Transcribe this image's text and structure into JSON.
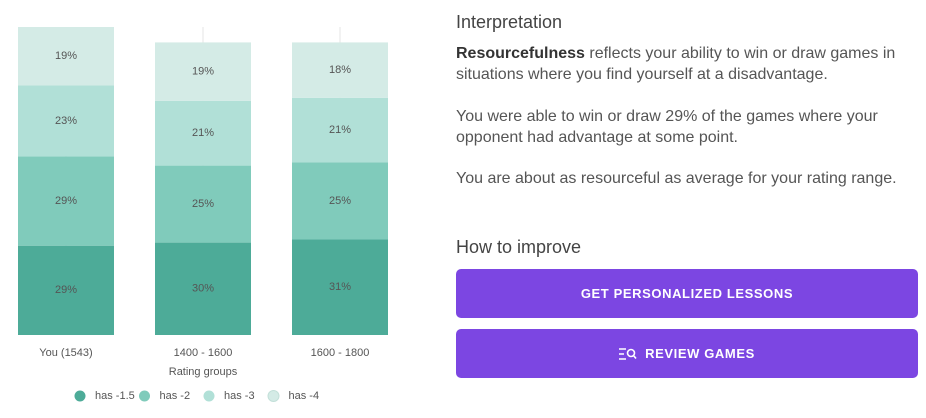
{
  "chart_data": {
    "type": "bar",
    "stacked": true,
    "categories": [
      "You (1543)",
      "1400 - 1600",
      "1600 - 1800"
    ],
    "x_label": "Rating groups",
    "ylim": [
      0,
      100
    ],
    "series": [
      {
        "name": "has -1.5",
        "color": "#4dab98",
        "values": [
          29,
          30,
          31
        ],
        "value_labels": [
          "29%",
          "30%",
          "31%"
        ]
      },
      {
        "name": "has -2",
        "color": "#80cbbb",
        "values": [
          29,
          25,
          25
        ],
        "value_labels": [
          "29%",
          "25%",
          "25%"
        ]
      },
      {
        "name": "has -3",
        "color": "#b1e0d7",
        "values": [
          23,
          21,
          21
        ],
        "value_labels": [
          "23%",
          "21%",
          "21%"
        ]
      },
      {
        "name": "has -4",
        "color": "#d4ebe6",
        "values": [
          19,
          19,
          18
        ],
        "value_labels": [
          "19%",
          "19%",
          "18%"
        ]
      }
    ]
  },
  "panel": {
    "interpretation_heading": "Interpretation",
    "paragraph_1": {
      "bold": "Resourcefulness",
      "rest": " reflects your ability to win or draw games in situations where you find yourself at a disadvantage."
    },
    "paragraph_2": "You were able to win or draw 29% of the games where your opponent had advantage at some point.",
    "paragraph_3": "You are about as resourceful as average for your rating range.",
    "improve_heading": "How to improve",
    "button_lessons": "GET PERSONALIZED LESSONS",
    "button_review": "REVIEW GAMES"
  }
}
